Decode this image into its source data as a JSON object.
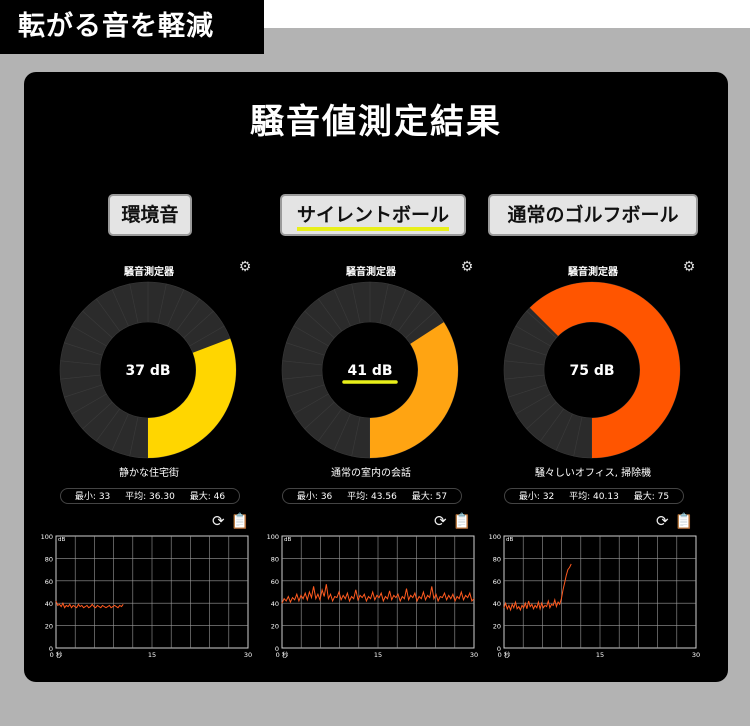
{
  "header": {
    "title": "転がる音を軽減"
  },
  "panel": {
    "title": "騒音値測定結果"
  },
  "columns": [
    {
      "label": "環境音",
      "meter_title": "騒音測定器",
      "db_label": "37 dB",
      "db_value": 37,
      "fill_color": "#ffd600",
      "description": "静かな住宅街",
      "stats": {
        "min": "最小: 33",
        "avg": "平均: 36.30",
        "max": "最大: 46"
      },
      "series": [
        42,
        38,
        39,
        37,
        40,
        36,
        38,
        37,
        39,
        36,
        38,
        37,
        36,
        39,
        37,
        38,
        36,
        37,
        38,
        36,
        37,
        39,
        37,
        36,
        38,
        37,
        36,
        38,
        37,
        36,
        37,
        38,
        36,
        37,
        38,
        37,
        36,
        38,
        37,
        39
      ]
    },
    {
      "label": "サイレントボール",
      "meter_title": "騒音測定器",
      "db_label": "41 dB",
      "db_value": 41,
      "fill_color": "#ffa412",
      "description": "通常の室内の会話",
      "stats": {
        "min": "最小: 36",
        "avg": "平均: 43.56",
        "max": "最大: 57"
      },
      "series": [
        40,
        44,
        42,
        46,
        41,
        45,
        43,
        48,
        42,
        47,
        44,
        49,
        43,
        50,
        45,
        55,
        44,
        48,
        43,
        52,
        46,
        57,
        44,
        48,
        42,
        46,
        45,
        50,
        43,
        47,
        44,
        49,
        42,
        46,
        44,
        52,
        43,
        47,
        45,
        48,
        42,
        46,
        44,
        50,
        43,
        47,
        45,
        49,
        42,
        46,
        44,
        51,
        43,
        47,
        45,
        48,
        42,
        46,
        44,
        53,
        43,
        47,
        45,
        49,
        42,
        46,
        44,
        50,
        43,
        47,
        45,
        55,
        44,
        48,
        42,
        46,
        45,
        49,
        43,
        47,
        44,
        48,
        42,
        46,
        44,
        50,
        43,
        47,
        45,
        49,
        42,
        44
      ]
    },
    {
      "label": "通常のゴルフボール",
      "meter_title": "騒音測定器",
      "db_label": "75 dB",
      "db_value": 75,
      "fill_color": "#ff5500",
      "description": "騒々しいオフィス, 掃除機",
      "stats": {
        "min": "最小: 32",
        "avg": "平均: 40.13",
        "max": "最大: 75"
      },
      "series": [
        36,
        40,
        35,
        38,
        34,
        39,
        36,
        41,
        35,
        37,
        34,
        38,
        36,
        40,
        35,
        42,
        37,
        39,
        35,
        38,
        36,
        41,
        35,
        40,
        36,
        38,
        37,
        42,
        36,
        39,
        38,
        43,
        37,
        41,
        39,
        44,
        52,
        58,
        65,
        70,
        72,
        75
      ]
    }
  ],
  "chart_data": {
    "type": "line",
    "xlabel": "",
    "ylabel": "dB",
    "x_unit": "秒",
    "xlim": [
      0,
      30
    ],
    "ylim": [
      0,
      100
    ],
    "x_ticks": [
      "0",
      "15",
      "30"
    ],
    "y_ticks": [
      "100",
      "80",
      "60",
      "40",
      "20",
      "0"
    ],
    "grid": true
  }
}
